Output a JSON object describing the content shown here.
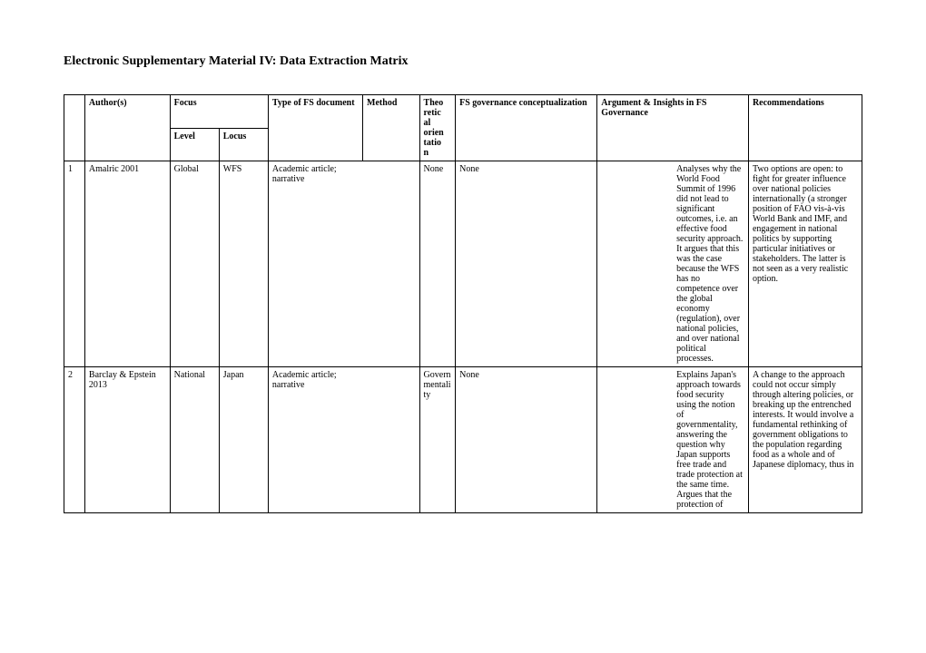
{
  "title": "Electronic Supplementary Material IV: Data Extraction Matrix",
  "headers": {
    "author": "Author(s)",
    "focus": "Focus",
    "level": "Level",
    "locus": "Locus",
    "type": "Type of FS document",
    "method": "Method",
    "theo": "Theoretical orientation",
    "fsgov": "FS governance conceptualization",
    "argument": "Argument & Insights in FS Governance",
    "rec": "Recommendations"
  },
  "rows": [
    {
      "n": "1",
      "author": "Amalric 2001",
      "level": "Global",
      "locus": "WFS",
      "type": "Academic article; narrative",
      "method": "",
      "theo": "None",
      "fsgov": "None",
      "arg_a": "",
      "arg_b": "Analyses why the World Food Summit of 1996 did not lead to significant outcomes, i.e. an effective food security approach. It argues that this was the case because the WFS has no competence over the global economy (regulation), over national policies, and over national political processes.",
      "rec": "Two options are open: to fight for greater influence over national policies internationally (a stronger position of FAO vis-à-vis World Bank and IMF, and engagement in national politics by supporting particular initiatives or stakeholders. The latter is not seen as a very realistic option."
    },
    {
      "n": "2",
      "author": "Barclay & Epstein 2013",
      "level": "National",
      "locus": "Japan",
      "type": "Academic article; narrative",
      "method": "",
      "theo": "Governmentality",
      "fsgov": "None",
      "arg_a": "",
      "arg_b": "Explains Japan's approach towards food security using the notion of governmentality, answering the question why Japan supports free trade and trade protection at the same time. Argues that the protection of",
      "rec": "A change to the approach could not occur simply through altering policies, or breaking up the entrenched interests. It would involve a fundamental rethinking of government obligations to the population regarding food as a whole and of Japanese diplomacy, thus in"
    }
  ]
}
